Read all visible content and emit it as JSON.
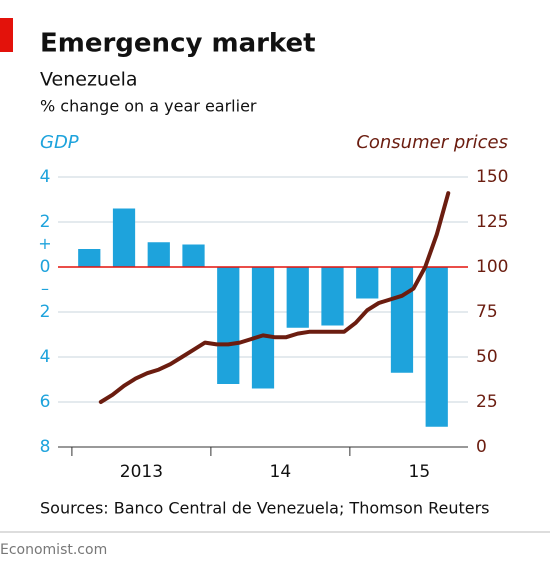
{
  "chart_data": {
    "type": "bar-line",
    "title": "Emergency market",
    "subtitle": "Venezuela",
    "unit_note": "% change on a year earlier",
    "source": "Sources: Banco Central de Venezuela; Thomson Reuters",
    "footer": "Economist.com",
    "ylim": [
      -8,
      4
    ],
    "yticks": [
      4,
      2,
      0,
      {
        "value": -2,
        "label": "2"
      },
      {
        "value": -4,
        "label": "4"
      },
      {
        "value": -6,
        "label": "6"
      },
      {
        "value": -8,
        "label": "8"
      }
    ],
    "y_signs": [
      {
        "value": 1,
        "label": "+"
      },
      {
        "value": -1,
        "label": "–"
      }
    ],
    "y2lim": [
      0,
      150
    ],
    "y2ticks": [
      0,
      25,
      50,
      75,
      100,
      125,
      150
    ],
    "xlim": [
      2012.9,
      2015.85
    ],
    "xticks": [
      2013,
      2014,
      2015
    ],
    "x_labels": [
      {
        "value": 2013.5,
        "label": "2013"
      },
      {
        "value": 2014.5,
        "label": "14"
      },
      {
        "value": 2015.5,
        "label": "15"
      }
    ],
    "grid": true,
    "zero_line_color": "#e3120b",
    "series": [
      {
        "name": "GDP",
        "type": "bar",
        "color": "#1ea3dc",
        "x": [
          2013.125,
          2013.375,
          2013.625,
          2013.875,
          2014.125,
          2014.375,
          2014.625,
          2014.875,
          2015.125,
          2015.375,
          2015.625
        ],
        "values": [
          0.8,
          2.6,
          1.1,
          1.0,
          -5.2,
          -5.4,
          -2.7,
          -2.6,
          -1.4,
          -4.7,
          -7.1
        ]
      },
      {
        "name": "Consumer prices",
        "type": "line",
        "axis": "y2",
        "color": "#6b1d10",
        "x": [
          2013.208,
          2013.292,
          2013.375,
          2013.458,
          2013.542,
          2013.625,
          2013.708,
          2013.792,
          2013.875,
          2013.958,
          2014.042,
          2014.125,
          2014.208,
          2014.292,
          2014.375,
          2014.458,
          2014.542,
          2014.625,
          2014.708,
          2014.792,
          2014.875,
          2014.958,
          2015.042,
          2015.125,
          2015.208,
          2015.292,
          2015.375,
          2015.458,
          2015.542,
          2015.625,
          2015.708
        ],
        "values": [
          25,
          29,
          34,
          38,
          41,
          43,
          46,
          50,
          54,
          58,
          57,
          57,
          58,
          60,
          62,
          61,
          61,
          63,
          64,
          64,
          64,
          64,
          69,
          76,
          80,
          82,
          84,
          88,
          100,
          118,
          141
        ]
      }
    ]
  }
}
